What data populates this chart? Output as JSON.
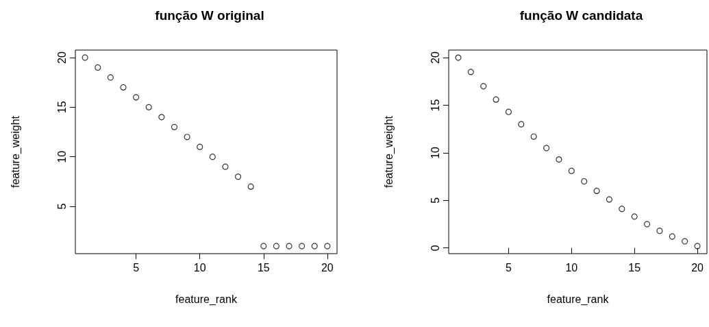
{
  "chart_data": [
    {
      "type": "scatter",
      "title": "função W original",
      "xlabel": "feature_rank",
      "ylabel": "feature_weight",
      "x": [
        1,
        2,
        3,
        4,
        5,
        6,
        7,
        8,
        9,
        10,
        11,
        12,
        13,
        14,
        15,
        16,
        17,
        18,
        19,
        20
      ],
      "series": [
        {
          "color": "#000000",
          "values": [
            20,
            19,
            18,
            17,
            16,
            15,
            14,
            13,
            12,
            11,
            10,
            9,
            8,
            7,
            1,
            1,
            1,
            1,
            1,
            1
          ]
        }
      ],
      "xlim": [
        0.24,
        20.76
      ],
      "xticks": [
        5,
        10,
        15,
        20
      ],
      "ylim": [
        0.24,
        20.76
      ],
      "yticks": [
        5,
        10,
        15,
        20
      ],
      "grid": false,
      "marker": "circle"
    },
    {
      "type": "scatter",
      "title": "função W candidata",
      "xlabel": "feature_rank",
      "ylabel": "feature_weight",
      "x": [
        1,
        2,
        3,
        4,
        5,
        6,
        7,
        8,
        9,
        10,
        11,
        12,
        13,
        14,
        15,
        16,
        17,
        18,
        19,
        20
      ],
      "series": [
        {
          "color": "#000000",
          "values": [
            20,
            18.5,
            17,
            15.6,
            14.3,
            13,
            11.7,
            10.5,
            9.3,
            8.1,
            7,
            6,
            5.1,
            4.1,
            3.3,
            2.5,
            1.8,
            1.2,
            0.7,
            0.2
          ]
        }
      ],
      "xlim": [
        0.24,
        20.76
      ],
      "xticks": [
        5,
        10,
        15,
        20
      ],
      "ylim": [
        -0.6,
        20.8
      ],
      "yticks": [
        0,
        5,
        10,
        15,
        20
      ],
      "grid": false,
      "marker": "circle"
    }
  ]
}
